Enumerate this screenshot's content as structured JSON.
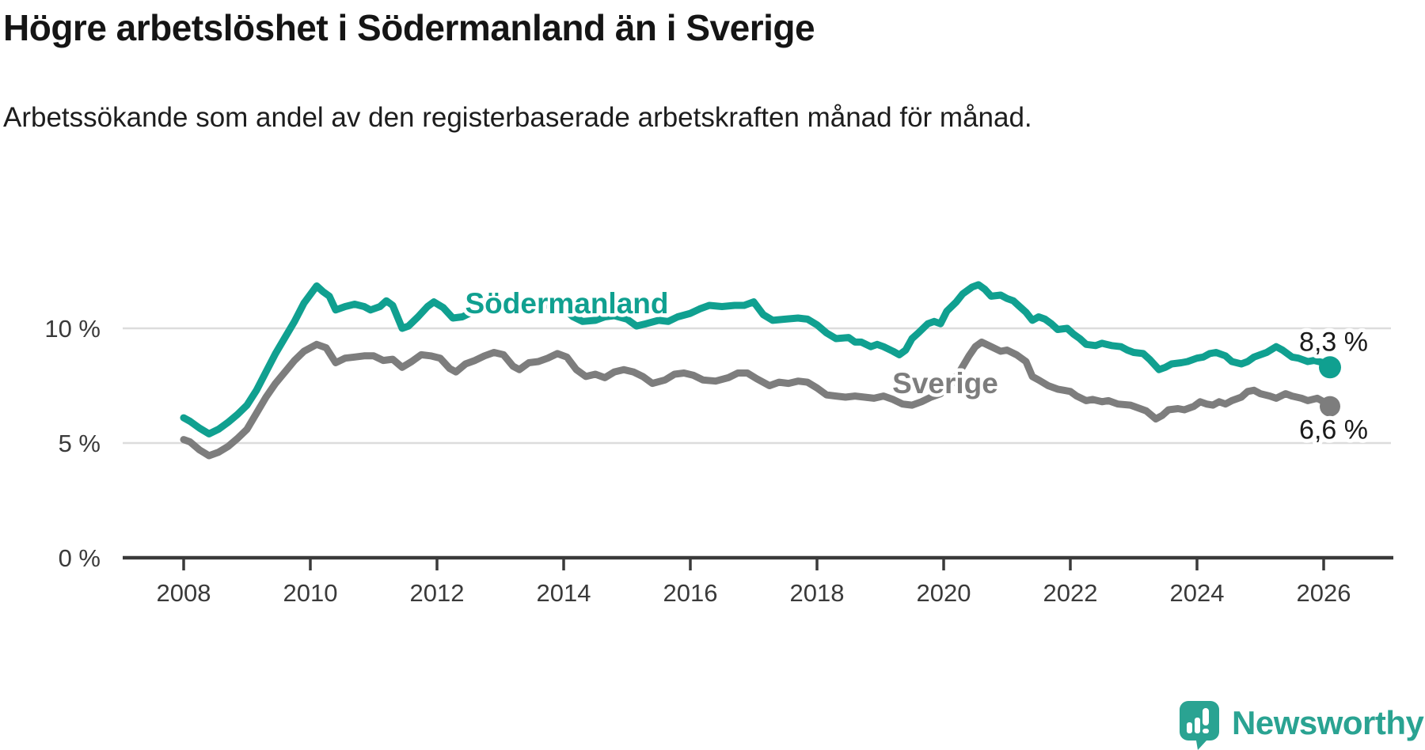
{
  "title": "Högre arbetslöshet i Södermanland än i Sverige",
  "subtitle": "Arbetssökande som andel av den registerbaserade arbetskraften månad för månad.",
  "branding": {
    "logo_text": "Newsworthy",
    "logo_icon": "speech-bubble-bar-chart",
    "logo_color": "#2aa392"
  },
  "colors": {
    "sodermanland": "#10a090",
    "sverige": "#7d7d7d",
    "grid": "#dcdcdc",
    "axis": "#3a3a3a",
    "tick_text": "#3a3a3a",
    "value_text": "#1a1a1a"
  },
  "chart_data": {
    "type": "line",
    "unit": "%",
    "grid": "horizontal-only",
    "legend_position": "inline-on-lines",
    "x_axis": {
      "ticks": [
        2008,
        2010,
        2012,
        2014,
        2016,
        2018,
        2020,
        2022,
        2024,
        2026
      ],
      "range": [
        2007.0,
        2027.1
      ]
    },
    "y_axis": {
      "ticks": [
        {
          "value": 0,
          "label": "0 %"
        },
        {
          "value": 5,
          "label": "5 %"
        },
        {
          "value": 10,
          "label": "10 %"
        }
      ],
      "range": [
        0,
        12.6
      ]
    },
    "series": [
      {
        "name": "Södermanland",
        "color": "#10a090",
        "end_label": "8,3 %",
        "end_value": 8.3,
        "points": [
          [
            2008.0,
            6.1
          ],
          [
            2008.1,
            5.95
          ],
          [
            2008.25,
            5.65
          ],
          [
            2008.4,
            5.4
          ],
          [
            2008.55,
            5.6
          ],
          [
            2008.7,
            5.9
          ],
          [
            2008.85,
            6.25
          ],
          [
            2009.0,
            6.65
          ],
          [
            2009.15,
            7.3
          ],
          [
            2009.3,
            8.1
          ],
          [
            2009.45,
            8.9
          ],
          [
            2009.6,
            9.6
          ],
          [
            2009.75,
            10.3
          ],
          [
            2009.9,
            11.1
          ],
          [
            2010.1,
            11.85
          ],
          [
            2010.2,
            11.6
          ],
          [
            2010.3,
            11.4
          ],
          [
            2010.4,
            10.8
          ],
          [
            2010.55,
            10.95
          ],
          [
            2010.7,
            11.05
          ],
          [
            2010.85,
            10.95
          ],
          [
            2010.95,
            10.8
          ],
          [
            2011.1,
            10.95
          ],
          [
            2011.2,
            11.2
          ],
          [
            2011.3,
            11.0
          ],
          [
            2011.45,
            10.0
          ],
          [
            2011.55,
            10.1
          ],
          [
            2011.7,
            10.5
          ],
          [
            2011.85,
            10.95
          ],
          [
            2011.95,
            11.15
          ],
          [
            2012.1,
            10.9
          ],
          [
            2012.25,
            10.45
          ],
          [
            2012.4,
            10.5
          ],
          [
            2012.55,
            10.7
          ],
          [
            2012.7,
            10.85
          ],
          [
            2012.85,
            10.9
          ],
          [
            2013.0,
            11.1
          ],
          [
            2013.15,
            10.95
          ],
          [
            2013.3,
            10.85
          ],
          [
            2013.5,
            10.9
          ],
          [
            2013.7,
            11.0
          ],
          [
            2013.85,
            11.05
          ],
          [
            2014.0,
            10.85
          ],
          [
            2014.15,
            10.5
          ],
          [
            2014.3,
            10.3
          ],
          [
            2014.5,
            10.35
          ],
          [
            2014.65,
            10.5
          ],
          [
            2014.8,
            10.55
          ],
          [
            2015.0,
            10.4
          ],
          [
            2015.15,
            10.1
          ],
          [
            2015.3,
            10.2
          ],
          [
            2015.5,
            10.35
          ],
          [
            2015.65,
            10.3
          ],
          [
            2015.8,
            10.5
          ],
          [
            2016.0,
            10.65
          ],
          [
            2016.15,
            10.85
          ],
          [
            2016.3,
            11.0
          ],
          [
            2016.5,
            10.95
          ],
          [
            2016.7,
            11.0
          ],
          [
            2016.85,
            11.0
          ],
          [
            2017.0,
            11.15
          ],
          [
            2017.15,
            10.6
          ],
          [
            2017.3,
            10.35
          ],
          [
            2017.5,
            10.4
          ],
          [
            2017.7,
            10.45
          ],
          [
            2017.85,
            10.4
          ],
          [
            2018.0,
            10.15
          ],
          [
            2018.15,
            9.8
          ],
          [
            2018.3,
            9.55
          ],
          [
            2018.5,
            9.6
          ],
          [
            2018.6,
            9.4
          ],
          [
            2018.7,
            9.4
          ],
          [
            2018.85,
            9.2
          ],
          [
            2018.95,
            9.3
          ],
          [
            2019.05,
            9.2
          ],
          [
            2019.2,
            9.0
          ],
          [
            2019.3,
            8.85
          ],
          [
            2019.4,
            9.05
          ],
          [
            2019.5,
            9.55
          ],
          [
            2019.6,
            9.8
          ],
          [
            2019.75,
            10.2
          ],
          [
            2019.85,
            10.3
          ],
          [
            2019.95,
            10.2
          ],
          [
            2020.05,
            10.75
          ],
          [
            2020.2,
            11.15
          ],
          [
            2020.3,
            11.5
          ],
          [
            2020.45,
            11.8
          ],
          [
            2020.55,
            11.9
          ],
          [
            2020.65,
            11.7
          ],
          [
            2020.75,
            11.4
          ],
          [
            2020.9,
            11.45
          ],
          [
            2021.0,
            11.3
          ],
          [
            2021.1,
            11.2
          ],
          [
            2021.2,
            10.95
          ],
          [
            2021.3,
            10.7
          ],
          [
            2021.4,
            10.35
          ],
          [
            2021.5,
            10.5
          ],
          [
            2021.6,
            10.4
          ],
          [
            2021.7,
            10.2
          ],
          [
            2021.8,
            9.95
          ],
          [
            2021.95,
            10.0
          ],
          [
            2022.05,
            9.75
          ],
          [
            2022.15,
            9.55
          ],
          [
            2022.25,
            9.3
          ],
          [
            2022.4,
            9.25
          ],
          [
            2022.5,
            9.35
          ],
          [
            2022.65,
            9.25
          ],
          [
            2022.8,
            9.2
          ],
          [
            2022.9,
            9.05
          ],
          [
            2023.0,
            8.95
          ],
          [
            2023.15,
            8.9
          ],
          [
            2023.25,
            8.65
          ],
          [
            2023.4,
            8.2
          ],
          [
            2023.5,
            8.3
          ],
          [
            2023.6,
            8.45
          ],
          [
            2023.75,
            8.5
          ],
          [
            2023.85,
            8.55
          ],
          [
            2024.0,
            8.7
          ],
          [
            2024.1,
            8.75
          ],
          [
            2024.2,
            8.9
          ],
          [
            2024.3,
            8.95
          ],
          [
            2024.45,
            8.8
          ],
          [
            2024.55,
            8.55
          ],
          [
            2024.7,
            8.45
          ],
          [
            2024.8,
            8.55
          ],
          [
            2024.9,
            8.75
          ],
          [
            2025.0,
            8.85
          ],
          [
            2025.1,
            8.95
          ],
          [
            2025.25,
            9.2
          ],
          [
            2025.35,
            9.05
          ],
          [
            2025.5,
            8.75
          ],
          [
            2025.6,
            8.7
          ],
          [
            2025.75,
            8.55
          ],
          [
            2025.85,
            8.6
          ],
          [
            2026.0,
            8.5
          ],
          [
            2026.1,
            8.3
          ]
        ]
      },
      {
        "name": "Sverige",
        "color": "#7d7d7d",
        "end_label": "6,6 %",
        "end_value": 6.6,
        "points": [
          [
            2008.0,
            5.15
          ],
          [
            2008.1,
            5.05
          ],
          [
            2008.25,
            4.7
          ],
          [
            2008.4,
            4.45
          ],
          [
            2008.55,
            4.6
          ],
          [
            2008.7,
            4.85
          ],
          [
            2008.85,
            5.2
          ],
          [
            2009.0,
            5.6
          ],
          [
            2009.15,
            6.3
          ],
          [
            2009.3,
            7.0
          ],
          [
            2009.45,
            7.6
          ],
          [
            2009.6,
            8.1
          ],
          [
            2009.75,
            8.6
          ],
          [
            2009.9,
            9.0
          ],
          [
            2010.1,
            9.3
          ],
          [
            2010.25,
            9.15
          ],
          [
            2010.4,
            8.5
          ],
          [
            2010.55,
            8.7
          ],
          [
            2010.7,
            8.75
          ],
          [
            2010.85,
            8.8
          ],
          [
            2011.0,
            8.8
          ],
          [
            2011.15,
            8.6
          ],
          [
            2011.3,
            8.65
          ],
          [
            2011.45,
            8.3
          ],
          [
            2011.6,
            8.55
          ],
          [
            2011.75,
            8.85
          ],
          [
            2011.9,
            8.8
          ],
          [
            2012.05,
            8.7
          ],
          [
            2012.2,
            8.25
          ],
          [
            2012.3,
            8.1
          ],
          [
            2012.45,
            8.45
          ],
          [
            2012.6,
            8.6
          ],
          [
            2012.75,
            8.8
          ],
          [
            2012.9,
            8.95
          ],
          [
            2013.05,
            8.85
          ],
          [
            2013.2,
            8.35
          ],
          [
            2013.3,
            8.2
          ],
          [
            2013.45,
            8.5
          ],
          [
            2013.6,
            8.55
          ],
          [
            2013.75,
            8.7
          ],
          [
            2013.9,
            8.9
          ],
          [
            2014.05,
            8.75
          ],
          [
            2014.2,
            8.2
          ],
          [
            2014.35,
            7.9
          ],
          [
            2014.5,
            8.0
          ],
          [
            2014.65,
            7.85
          ],
          [
            2014.8,
            8.1
          ],
          [
            2014.95,
            8.2
          ],
          [
            2015.1,
            8.1
          ],
          [
            2015.25,
            7.9
          ],
          [
            2015.4,
            7.6
          ],
          [
            2015.6,
            7.75
          ],
          [
            2015.75,
            8.0
          ],
          [
            2015.9,
            8.05
          ],
          [
            2016.05,
            7.95
          ],
          [
            2016.2,
            7.75
          ],
          [
            2016.4,
            7.7
          ],
          [
            2016.6,
            7.85
          ],
          [
            2016.75,
            8.05
          ],
          [
            2016.9,
            8.05
          ],
          [
            2017.05,
            7.8
          ],
          [
            2017.25,
            7.5
          ],
          [
            2017.4,
            7.65
          ],
          [
            2017.55,
            7.6
          ],
          [
            2017.7,
            7.7
          ],
          [
            2017.85,
            7.65
          ],
          [
            2018.0,
            7.4
          ],
          [
            2018.15,
            7.1
          ],
          [
            2018.3,
            7.05
          ],
          [
            2018.45,
            7.0
          ],
          [
            2018.6,
            7.05
          ],
          [
            2018.75,
            7.0
          ],
          [
            2018.9,
            6.95
          ],
          [
            2019.05,
            7.05
          ],
          [
            2019.2,
            6.9
          ],
          [
            2019.35,
            6.7
          ],
          [
            2019.5,
            6.65
          ],
          [
            2019.65,
            6.8
          ],
          [
            2019.8,
            7.0
          ],
          [
            2019.95,
            7.15
          ],
          [
            2020.1,
            7.5
          ],
          [
            2020.25,
            8.1
          ],
          [
            2020.4,
            8.8
          ],
          [
            2020.5,
            9.2
          ],
          [
            2020.6,
            9.4
          ],
          [
            2020.75,
            9.2
          ],
          [
            2020.9,
            9.0
          ],
          [
            2021.0,
            9.05
          ],
          [
            2021.15,
            8.85
          ],
          [
            2021.3,
            8.55
          ],
          [
            2021.4,
            7.9
          ],
          [
            2021.5,
            7.75
          ],
          [
            2021.65,
            7.5
          ],
          [
            2021.8,
            7.35
          ],
          [
            2021.9,
            7.3
          ],
          [
            2022.0,
            7.25
          ],
          [
            2022.1,
            7.05
          ],
          [
            2022.25,
            6.85
          ],
          [
            2022.35,
            6.9
          ],
          [
            2022.5,
            6.8
          ],
          [
            2022.6,
            6.85
          ],
          [
            2022.75,
            6.7
          ],
          [
            2022.95,
            6.65
          ],
          [
            2023.05,
            6.55
          ],
          [
            2023.2,
            6.4
          ],
          [
            2023.35,
            6.05
          ],
          [
            2023.45,
            6.2
          ],
          [
            2023.55,
            6.45
          ],
          [
            2023.7,
            6.5
          ],
          [
            2023.8,
            6.45
          ],
          [
            2023.95,
            6.6
          ],
          [
            2024.05,
            6.8
          ],
          [
            2024.15,
            6.7
          ],
          [
            2024.25,
            6.65
          ],
          [
            2024.35,
            6.8
          ],
          [
            2024.45,
            6.7
          ],
          [
            2024.55,
            6.85
          ],
          [
            2024.7,
            7.0
          ],
          [
            2024.8,
            7.25
          ],
          [
            2024.9,
            7.3
          ],
          [
            2025.0,
            7.15
          ],
          [
            2025.15,
            7.05
          ],
          [
            2025.25,
            6.95
          ],
          [
            2025.4,
            7.15
          ],
          [
            2025.5,
            7.05
          ],
          [
            2025.65,
            6.95
          ],
          [
            2025.75,
            6.85
          ],
          [
            2025.9,
            6.95
          ],
          [
            2026.0,
            6.8
          ],
          [
            2026.1,
            6.6
          ]
        ]
      }
    ]
  }
}
